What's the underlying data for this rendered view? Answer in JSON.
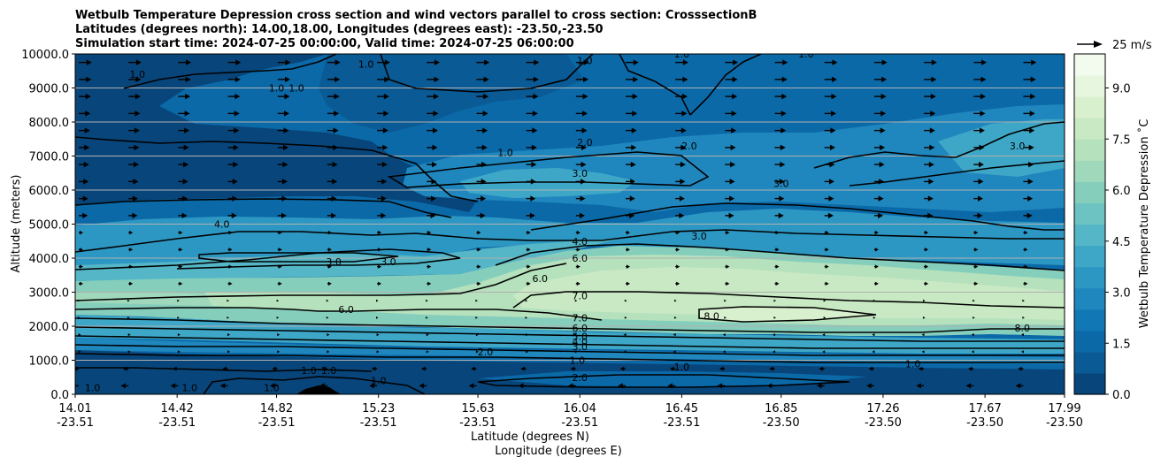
{
  "chart_data": {
    "type": "contour",
    "title_lines": [
      "Wetbulb Temperature Depression cross section and wind vectors parallel to cross section: CrosssectionB",
      "Latitudes (degrees north): 14.00,18.00, Longitudes (degrees east): -23.50,-23.50",
      "Simulation start time: 2024-07-25 00:00:00, Valid time: 2024-07-25 06:00:00"
    ],
    "xlabel_lines": [
      "Latitude (degrees N)",
      "Longitude (degrees E)"
    ],
    "ylabel": "Altitude (meters)",
    "colorbar_label": "Wetbulb Temperature Depression ˚C",
    "quiver_key_label": "25 m/s",
    "x_ticks": [
      {
        "lat": "14.01",
        "lon": "-23.51"
      },
      {
        "lat": "14.42",
        "lon": "-23.51"
      },
      {
        "lat": "14.82",
        "lon": "-23.51"
      },
      {
        "lat": "15.23",
        "lon": "-23.51"
      },
      {
        "lat": "15.63",
        "lon": "-23.51"
      },
      {
        "lat": "16.04",
        "lon": "-23.51"
      },
      {
        "lat": "16.45",
        "lon": "-23.51"
      },
      {
        "lat": "16.85",
        "lon": "-23.50"
      },
      {
        "lat": "17.26",
        "lon": "-23.50"
      },
      {
        "lat": "17.67",
        "lon": "-23.50"
      },
      {
        "lat": "17.99",
        "lon": "-23.50"
      }
    ],
    "y_ticks": [
      "0.0",
      "1000.0",
      "2000.0",
      "3000.0",
      "4000.0",
      "5000.0",
      "6000.0",
      "7000.0",
      "8000.0",
      "9000.0",
      "10000.0"
    ],
    "ylim": [
      0,
      10000
    ],
    "xlim": [
      14.01,
      17.99
    ],
    "grid": "horizontal",
    "colorbar_ticks": [
      "0.0",
      "1.5",
      "3.0",
      "4.5",
      "6.0",
      "7.5",
      "9.0"
    ],
    "colorbar_range": [
      0,
      10
    ],
    "colormap": [
      "#08457a",
      "#0a5a95",
      "#0b69a8",
      "#1277b5",
      "#1f87be",
      "#2d97c3",
      "#3ea7c7",
      "#54b6c6",
      "#6cc3c1",
      "#86cebc",
      "#9fd8ba",
      "#b5e1bd",
      "#c8e9c3",
      "#d9f0cf",
      "#e7f6de",
      "#f3faee"
    ],
    "contour_labels": [
      {
        "text": "1.0",
        "x": 14.26,
        "y": 9400
      },
      {
        "text": "1.0",
        "x": 14.82,
        "y": 9000
      },
      {
        "text": "1.0",
        "x": 14.9,
        "y": 9000
      },
      {
        "text": "1.0",
        "x": 15.18,
        "y": 9700
      },
      {
        "text": "1.0",
        "x": 16.06,
        "y": 9800
      },
      {
        "text": "1.0",
        "x": 16.45,
        "y": 10000
      },
      {
        "text": "1.0",
        "x": 16.95,
        "y": 10000
      },
      {
        "text": "2.0",
        "x": 16.06,
        "y": 7400
      },
      {
        "text": "2.0",
        "x": 16.48,
        "y": 7300
      },
      {
        "text": "1.0",
        "x": 15.74,
        "y": 7100
      },
      {
        "text": "3.0",
        "x": 16.04,
        "y": 6500
      },
      {
        "text": "3.0",
        "x": 16.85,
        "y": 6200
      },
      {
        "text": "3.0",
        "x": 17.8,
        "y": 7300
      },
      {
        "text": "4.0",
        "x": 14.6,
        "y": 5000
      },
      {
        "text": "3.0",
        "x": 15.05,
        "y": 3900
      },
      {
        "text": "3.0",
        "x": 15.27,
        "y": 3900
      },
      {
        "text": "4.0",
        "x": 16.04,
        "y": 4500
      },
      {
        "text": "3.0",
        "x": 16.52,
        "y": 4650
      },
      {
        "text": "6.0",
        "x": 16.04,
        "y": 4000
      },
      {
        "text": "6.0",
        "x": 15.88,
        "y": 3400
      },
      {
        "text": "7.0",
        "x": 16.04,
        "y": 2900
      },
      {
        "text": "7.0",
        "x": 16.04,
        "y": 2250
      },
      {
        "text": "6.0",
        "x": 15.1,
        "y": 2500
      },
      {
        "text": "8.0",
        "x": 16.57,
        "y": 2300
      },
      {
        "text": "8.0",
        "x": 17.82,
        "y": 1950
      },
      {
        "text": "6.0",
        "x": 16.04,
        "y": 1950
      },
      {
        "text": "5.0",
        "x": 16.04,
        "y": 1700
      },
      {
        "text": "4.0",
        "x": 16.04,
        "y": 1550
      },
      {
        "text": "3.0",
        "x": 16.04,
        "y": 1400
      },
      {
        "text": "2.0",
        "x": 15.66,
        "y": 1250
      },
      {
        "text": "1.0",
        "x": 14.95,
        "y": 700
      },
      {
        "text": "1.0",
        "x": 15.03,
        "y": 700
      },
      {
        "text": "1.0",
        "x": 15.23,
        "y": 400
      },
      {
        "text": "2.0",
        "x": 16.04,
        "y": 500
      },
      {
        "text": "1.0",
        "x": 16.03,
        "y": 1000
      },
      {
        "text": "1.0",
        "x": 16.45,
        "y": 800
      },
      {
        "text": "1.0",
        "x": 17.38,
        "y": 900
      },
      {
        "text": "1.0",
        "x": 14.08,
        "y": 200
      },
      {
        "text": "1.0",
        "x": 14.47,
        "y": 200
      },
      {
        "text": "1.0",
        "x": 14.8,
        "y": 200
      }
    ]
  }
}
